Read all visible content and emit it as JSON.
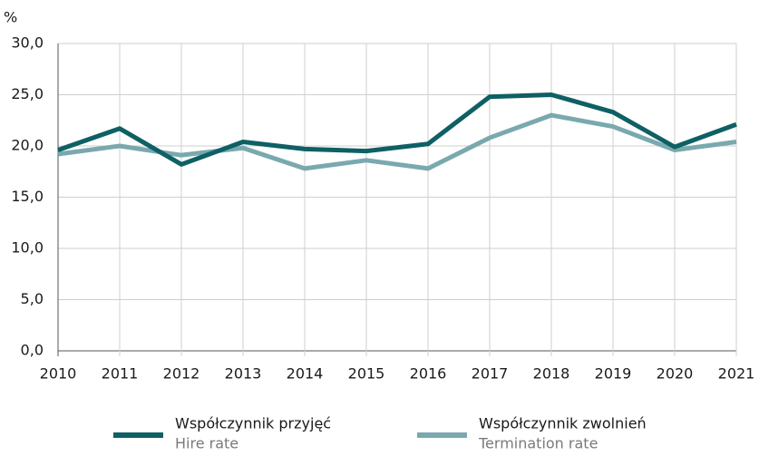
{
  "chart_data": {
    "type": "line",
    "y_label": "%",
    "categories": [
      "2010",
      "2011",
      "2012",
      "2013",
      "2014",
      "2015",
      "2016",
      "2017",
      "2018",
      "2019",
      "2020",
      "2021"
    ],
    "series": [
      {
        "name": "Współczynnik przyjęć",
        "name_en": "Hire rate",
        "color": "#0e6064",
        "values": [
          19.6,
          21.7,
          18.2,
          20.4,
          19.7,
          19.5,
          20.2,
          24.8,
          25.0,
          23.3,
          19.9,
          22.1
        ]
      },
      {
        "name": "Współczynnik zwolnień",
        "name_en": "Termination rate",
        "color": "#79a9ae",
        "values": [
          19.2,
          20.0,
          19.1,
          19.8,
          17.8,
          18.6,
          17.8,
          20.8,
          23.0,
          21.9,
          19.6,
          20.4
        ]
      }
    ],
    "ylim": [
      0,
      30
    ],
    "yticks": [
      {
        "value": 0,
        "label": "0,0"
      },
      {
        "value": 5,
        "label": "5,0"
      },
      {
        "value": 10,
        "label": "10,0"
      },
      {
        "value": 15,
        "label": "15,0"
      },
      {
        "value": 20,
        "label": "20,0"
      },
      {
        "value": 25,
        "label": "25,0"
      },
      {
        "value": 30,
        "label": "30,0"
      }
    ],
    "grid": true
  }
}
